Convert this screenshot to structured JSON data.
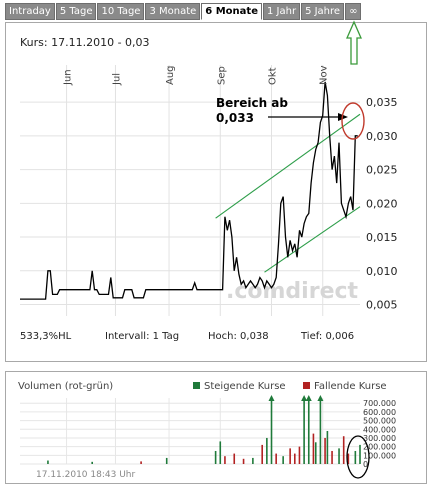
{
  "tabs": [
    {
      "label": "Intraday",
      "active": false
    },
    {
      "label": "5 Tage",
      "active": false
    },
    {
      "label": "10 Tage",
      "active": false
    },
    {
      "label": "3 Monate",
      "active": false
    },
    {
      "label": "6 Monate",
      "active": true
    },
    {
      "label": "1 Jahr",
      "active": false
    },
    {
      "label": "5 Jahre",
      "active": false
    },
    {
      "label": "∞",
      "active": false
    }
  ],
  "kurs_label": "Kurs: 17.11.2010 - 0,03",
  "stats": {
    "hl": "533,3%HL",
    "intervall": "Intervall: 1 Tag",
    "hoch": "Hoch: 0,038",
    "tief": "Tief: 0,006"
  },
  "watermark": ".comdirect",
  "annotation": {
    "line1": "Bereich ab",
    "line2": "0,033"
  },
  "volume": {
    "title": "Volumen (rot-grün)",
    "legend_up": "Steigende Kurse",
    "legend_down": "Fallende Kurse",
    "up_color": "#1f7a3a",
    "down_color": "#b22222",
    "timestamp": "17.11.2010 18:43 Uhr"
  },
  "chart_data": [
    {
      "type": "line",
      "title": "Kurs",
      "months": [
        "Jun",
        "Jul",
        "Aug",
        "Sep",
        "Okt",
        "Nov"
      ],
      "month_day_index": [
        20,
        41,
        64,
        86,
        108,
        130
      ],
      "yticks": [
        "0,005",
        "0,010",
        "0,015",
        "0,020",
        "0,025",
        "0,030",
        "0,035"
      ],
      "ytick_values": [
        0.005,
        0.01,
        0.015,
        0.02,
        0.025,
        0.03,
        0.035
      ],
      "ylim": [
        0.0033,
        0.0405
      ],
      "xlim": [
        0,
        146
      ],
      "grid": true,
      "values": [
        0.0058,
        0.0058,
        0.0058,
        0.0058,
        0.0058,
        0.0058,
        0.0058,
        0.0058,
        0.0058,
        0.0058,
        0.0058,
        0.0058,
        0.01,
        0.01,
        0.0065,
        0.0065,
        0.0065,
        0.0072,
        0.0072,
        0.0072,
        0.0072,
        0.0072,
        0.0072,
        0.0072,
        0.0072,
        0.0072,
        0.0072,
        0.0072,
        0.0072,
        0.0072,
        0.0072,
        0.01,
        0.0072,
        0.0072,
        0.0065,
        0.0065,
        0.0065,
        0.0065,
        0.0065,
        0.009,
        0.006,
        0.006,
        0.006,
        0.006,
        0.006,
        0.0072,
        0.0072,
        0.0072,
        0.0072,
        0.006,
        0.006,
        0.006,
        0.006,
        0.006,
        0.0072,
        0.0072,
        0.0072,
        0.0072,
        0.0072,
        0.0072,
        0.0072,
        0.0072,
        0.0072,
        0.0072,
        0.0072,
        0.0072,
        0.0072,
        0.0072,
        0.0072,
        0.0072,
        0.0072,
        0.0072,
        0.0072,
        0.0072,
        0.0072,
        0.0082,
        0.0072,
        0.0072,
        0.0072,
        0.0072,
        0.0072,
        0.0072,
        0.0072,
        0.0072,
        0.0072,
        0.0072,
        0.0072,
        0.0072,
        0.018,
        0.016,
        0.0175,
        0.015,
        0.01,
        0.012,
        0.0095,
        0.008,
        0.0085,
        0.0075,
        0.008,
        0.0085,
        0.008,
        0.0075,
        0.008,
        0.009,
        0.0085,
        0.0075,
        0.0085,
        0.008,
        0.0075,
        0.008,
        0.009,
        0.014,
        0.02,
        0.021,
        0.015,
        0.012,
        0.0145,
        0.013,
        0.014,
        0.012,
        0.016,
        0.015,
        0.017,
        0.018,
        0.0185,
        0.023,
        0.026,
        0.028,
        0.029,
        0.032,
        0.033,
        0.038,
        0.036,
        0.03,
        0.025,
        0.027,
        0.023,
        0.029,
        0.02,
        0.019,
        0.018,
        0.02,
        0.021,
        0.019,
        0.03,
        0.03
      ],
      "channel_lines": [
        {
          "from": [
            84,
            0.0178
          ],
          "to": [
            146,
            0.0332
          ]
        },
        {
          "from": [
            105,
            0.0098
          ],
          "to": [
            146,
            0.0195
          ]
        }
      ]
    },
    {
      "type": "bar",
      "title": "Volumen (rot-grün)",
      "yticks": [
        "0",
        "100.000",
        "200.000",
        "300.000",
        "400.000",
        "500.000",
        "600.000",
        "700.000"
      ],
      "ytick_values": [
        0,
        100000,
        200000,
        300000,
        400000,
        500000,
        600000,
        700000
      ],
      "ylim": [
        0,
        760000
      ],
      "xlim": [
        0,
        146
      ],
      "bars": [
        {
          "x": 12,
          "v": 40000,
          "dir": "up"
        },
        {
          "x": 31,
          "v": 25000,
          "dir": "up"
        },
        {
          "x": 52,
          "v": 30000,
          "dir": "down"
        },
        {
          "x": 63,
          "v": 70000,
          "dir": "up"
        },
        {
          "x": 84,
          "v": 150000,
          "dir": "up"
        },
        {
          "x": 86,
          "v": 260000,
          "dir": "up"
        },
        {
          "x": 88,
          "v": 90000,
          "dir": "down"
        },
        {
          "x": 92,
          "v": 120000,
          "dir": "down"
        },
        {
          "x": 96,
          "v": 60000,
          "dir": "down"
        },
        {
          "x": 100,
          "v": 70000,
          "dir": "up"
        },
        {
          "x": 104,
          "v": 220000,
          "dir": "down"
        },
        {
          "x": 106,
          "v": 300000,
          "dir": "up"
        },
        {
          "x": 108,
          "v": 760000,
          "dir": "up"
        },
        {
          "x": 110,
          "v": 120000,
          "dir": "down"
        },
        {
          "x": 113,
          "v": 90000,
          "dir": "up"
        },
        {
          "x": 116,
          "v": 180000,
          "dir": "down"
        },
        {
          "x": 118,
          "v": 120000,
          "dir": "down"
        },
        {
          "x": 120,
          "v": 200000,
          "dir": "down"
        },
        {
          "x": 122,
          "v": 760000,
          "dir": "up"
        },
        {
          "x": 124,
          "v": 760000,
          "dir": "up"
        },
        {
          "x": 126,
          "v": 350000,
          "dir": "down"
        },
        {
          "x": 127,
          "v": 250000,
          "dir": "up"
        },
        {
          "x": 129,
          "v": 760000,
          "dir": "up"
        },
        {
          "x": 131,
          "v": 300000,
          "dir": "down"
        },
        {
          "x": 132,
          "v": 380000,
          "dir": "up"
        },
        {
          "x": 134,
          "v": 150000,
          "dir": "down"
        },
        {
          "x": 137,
          "v": 180000,
          "dir": "up"
        },
        {
          "x": 139,
          "v": 320000,
          "dir": "down"
        },
        {
          "x": 141,
          "v": 120000,
          "dir": "down"
        },
        {
          "x": 144,
          "v": 150000,
          "dir": "up"
        },
        {
          "x": 146,
          "v": 220000,
          "dir": "up"
        }
      ]
    }
  ]
}
